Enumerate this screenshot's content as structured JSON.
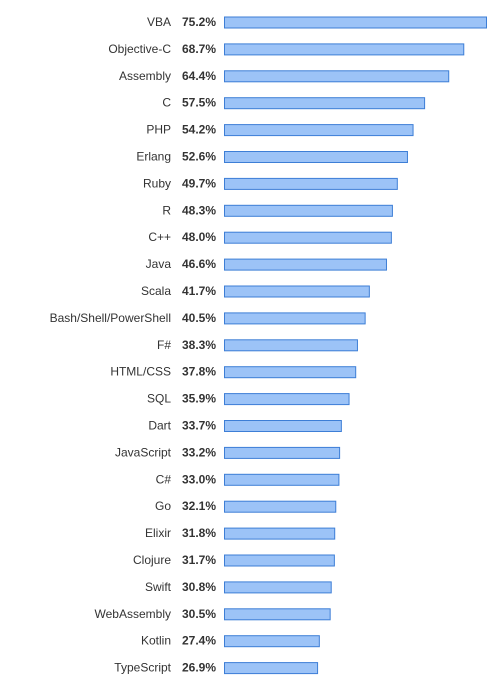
{
  "chart_data": {
    "type": "bar",
    "orientation": "horizontal",
    "categories": [
      "VBA",
      "Objective-C",
      "Assembly",
      "C",
      "PHP",
      "Erlang",
      "Ruby",
      "R",
      "C++",
      "Java",
      "Scala",
      "Bash/Shell/PowerShell",
      "F#",
      "HTML/CSS",
      "SQL",
      "Dart",
      "JavaScript",
      "C#",
      "Go",
      "Elixir",
      "Clojure",
      "Swift",
      "WebAssembly",
      "Kotlin",
      "TypeScript"
    ],
    "values": [
      75.2,
      68.7,
      64.4,
      57.5,
      54.2,
      52.6,
      49.7,
      48.3,
      48.0,
      46.6,
      41.7,
      40.5,
      38.3,
      37.8,
      35.9,
      33.7,
      33.2,
      33.0,
      32.1,
      31.8,
      31.7,
      30.8,
      30.5,
      27.4,
      26.9
    ],
    "value_labels": [
      "75.2%",
      "68.7%",
      "64.4%",
      "57.5%",
      "54.2%",
      "52.6%",
      "49.7%",
      "48.3%",
      "48.0%",
      "46.6%",
      "41.7%",
      "40.5%",
      "38.3%",
      "37.8%",
      "35.9%",
      "33.7%",
      "33.2%",
      "33.0%",
      "32.1%",
      "31.8%",
      "31.7%",
      "30.8%",
      "30.5%",
      "27.4%",
      "26.9%"
    ],
    "unit": "%",
    "title": "",
    "xlabel": "",
    "ylabel": "",
    "xlim": [
      0,
      75.2
    ],
    "grid": false,
    "legend": "none",
    "colors": {
      "bar_fill": "#9cc3f7",
      "bar_stroke": "#3d7ed6",
      "text": "#333333"
    }
  }
}
